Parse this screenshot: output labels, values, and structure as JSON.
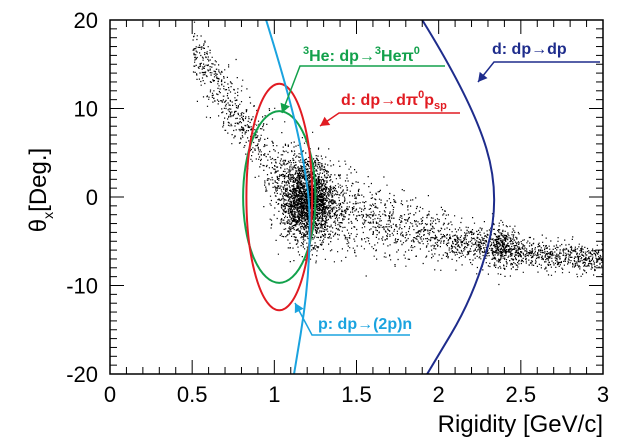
{
  "chart_data": {
    "type": "scatter",
    "xlim": [
      0,
      3
    ],
    "ylim": [
      -20,
      20
    ],
    "x_ticks": [
      {
        "value": 0,
        "label": "0"
      },
      {
        "value": 0.5,
        "label": "0.5"
      },
      {
        "value": 1,
        "label": "1"
      },
      {
        "value": 1.5,
        "label": "1.5"
      },
      {
        "value": 2,
        "label": "2"
      },
      {
        "value": 2.5,
        "label": "2.5"
      },
      {
        "value": 3,
        "label": "3"
      }
    ],
    "y_ticks": [
      {
        "value": -20,
        "label": "-20"
      },
      {
        "value": -10,
        "label": "-10"
      },
      {
        "value": 0,
        "label": "0"
      },
      {
        "value": 10,
        "label": "10"
      },
      {
        "value": 20,
        "label": "20"
      }
    ],
    "xlabel": "Rigidity [GeV/c]",
    "ylabel": {
      "main": "θ",
      "sub": "x",
      "rest": "[Deg.]"
    },
    "grid": false,
    "scatter_band": {
      "points": [
        [
          0.5,
          17
        ],
        [
          0.7,
          11
        ],
        [
          0.9,
          6
        ],
        [
          1.05,
          2
        ],
        [
          1.2,
          0
        ],
        [
          1.4,
          -1.5
        ],
        [
          1.7,
          -3
        ],
        [
          2.0,
          -4.5
        ],
        [
          2.3,
          -5.5
        ],
        [
          2.6,
          -6.5
        ],
        [
          3.0,
          -7
        ]
      ],
      "dense_core": {
        "x": 1.2,
        "y": -0.5
      },
      "secondary_cluster": {
        "x": 2.38,
        "y": -5.5
      },
      "color": "#000000"
    },
    "curves": [
      {
        "id": "he3",
        "label": {
          "pre_sup": "3",
          "a": "He: dp→",
          "mid_sup": "3",
          "b": "Heπ",
          "end_sup": "0"
        },
        "shape": "ellipse",
        "center": [
          1.03,
          0
        ],
        "rx": 0.22,
        "ry": 9.7,
        "color": "#12a14b"
      },
      {
        "id": "d-pi0-psp",
        "label": {
          "a": "d: dp→dπ",
          "sup": "0",
          "b": "p",
          "sub": "sp"
        },
        "shape": "ellipse",
        "center": [
          1.03,
          0
        ],
        "rx": 0.2,
        "ry": 12.8,
        "color": "#e11b22"
      },
      {
        "id": "p-2p-n",
        "label": {
          "text": "p: dp→(2p)n"
        },
        "shape": "line",
        "points": [
          [
            0.95,
            20
          ],
          [
            1.1,
            11
          ],
          [
            1.2,
            2
          ],
          [
            1.22,
            -3
          ],
          [
            1.2,
            -11
          ],
          [
            1.12,
            -20
          ]
        ],
        "color": "#1aa3df"
      },
      {
        "id": "d-elastic",
        "label": {
          "text": "d: dp→dp"
        },
        "shape": "line",
        "points": [
          [
            1.9,
            20
          ],
          [
            2.2,
            11
          ],
          [
            2.38,
            0
          ],
          [
            2.22,
            -11
          ],
          [
            1.93,
            -20
          ]
        ],
        "color": "#1e2c8c"
      }
    ]
  }
}
